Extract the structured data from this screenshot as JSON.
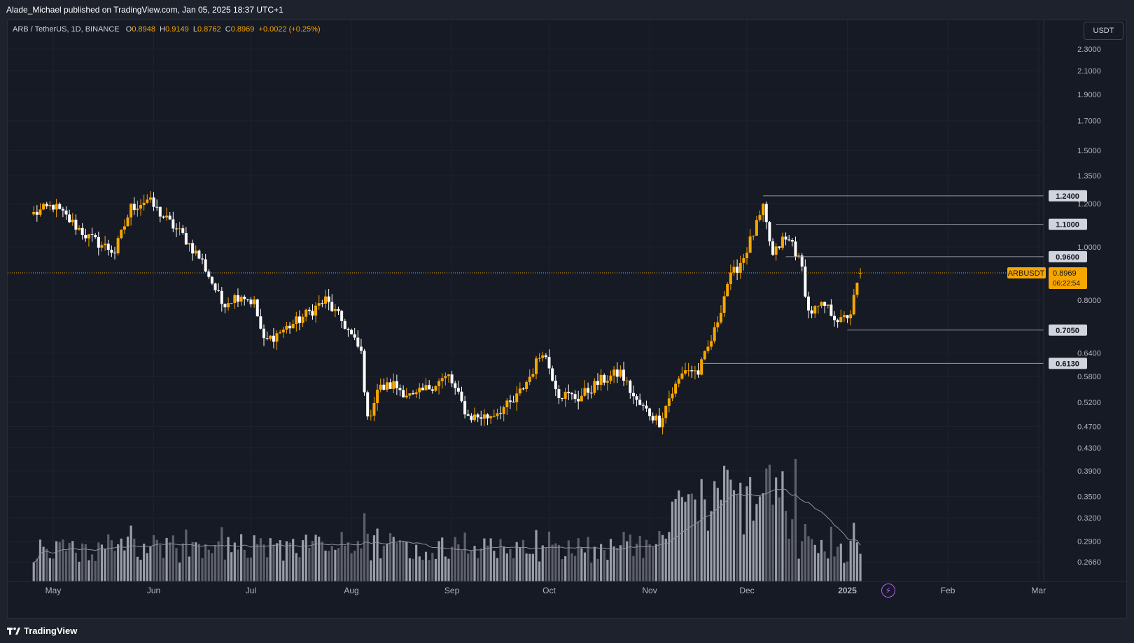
{
  "header": {
    "published_text": "Alade_Michael published on TradingView.com, Jan 05, 2025 18:37 UTC+1"
  },
  "legend": {
    "symbol_text": "ARB / TetherUS, 1D, BINANCE",
    "open_label": "O",
    "open": "0.8948",
    "high_label": "H",
    "high": "0.9149",
    "low_label": "L",
    "low": "0.8762",
    "close_label": "C",
    "close": "0.8969",
    "change": "+0.0022 (+0.25%)"
  },
  "currency_button": "USDT",
  "price_tag": {
    "symbol": "ARBUSDT",
    "price": "0.8969",
    "countdown": "06:22:54",
    "color": "#f7a600"
  },
  "footer": {
    "brand": "TradingView"
  },
  "icons": {
    "bolt": "lightning-icon",
    "logo": "tradingview-logo-icon"
  },
  "colors": {
    "up": "#f7a600",
    "down": "#ffffff",
    "background": "#161a25",
    "grid": "#1f2330"
  },
  "chart_data": {
    "type": "candlestick",
    "symbol": "ARB / TetherUS",
    "interval": "1D",
    "exchange": "BINANCE",
    "scale": "log",
    "ylim": [
      0.24,
      2.45
    ],
    "price_ticks": [
      "2.3000",
      "2.1000",
      "1.9000",
      "1.7000",
      "1.5000",
      "1.3500",
      "1.2000",
      "1.0000",
      "0.8000",
      "0.6400",
      "0.5800",
      "0.5200",
      "0.4700",
      "0.4300",
      "0.3900",
      "0.3500",
      "0.3200",
      "0.2900",
      "0.2660"
    ],
    "x_ticks": [
      "May",
      "Jun",
      "Jul",
      "Aug",
      "Sep",
      "Oct",
      "Nov",
      "Dec",
      "2025",
      "Feb",
      "Mar"
    ],
    "horizontal_levels": [
      {
        "value": 1.24,
        "label": "1.2400"
      },
      {
        "value": 1.1,
        "label": "1.1000"
      },
      {
        "value": 0.96,
        "label": "0.9600"
      },
      {
        "value": 0.705,
        "label": "0.7050"
      },
      {
        "value": 0.613,
        "label": "0.6130"
      }
    ],
    "last_price": 0.8969,
    "trend_anchors": [
      {
        "date": "2024-04-25",
        "price": 1.15
      },
      {
        "date": "2024-05-01",
        "price": 1.19
      },
      {
        "date": "2024-05-12",
        "price": 1.04
      },
      {
        "date": "2024-05-20",
        "price": 0.98
      },
      {
        "date": "2024-05-25",
        "price": 1.18
      },
      {
        "date": "2024-05-30",
        "price": 1.22
      },
      {
        "date": "2024-06-05",
        "price": 1.12
      },
      {
        "date": "2024-06-10",
        "price": 1.05
      },
      {
        "date": "2024-06-16",
        "price": 0.94
      },
      {
        "date": "2024-06-22",
        "price": 0.79
      },
      {
        "date": "2024-06-28",
        "price": 0.82
      },
      {
        "date": "2024-07-02",
        "price": 0.79
      },
      {
        "date": "2024-07-05",
        "price": 0.67
      },
      {
        "date": "2024-07-10",
        "price": 0.7
      },
      {
        "date": "2024-07-15",
        "price": 0.73
      },
      {
        "date": "2024-07-24",
        "price": 0.8
      },
      {
        "date": "2024-07-30",
        "price": 0.72
      },
      {
        "date": "2024-08-04",
        "price": 0.64
      },
      {
        "date": "2024-08-06",
        "price": 0.48
      },
      {
        "date": "2024-08-09",
        "price": 0.55
      },
      {
        "date": "2024-08-14",
        "price": 0.56
      },
      {
        "date": "2024-08-20",
        "price": 0.53
      },
      {
        "date": "2024-08-26",
        "price": 0.56
      },
      {
        "date": "2024-08-31",
        "price": 0.58
      },
      {
        "date": "2024-09-06",
        "price": 0.49
      },
      {
        "date": "2024-09-12",
        "price": 0.49
      },
      {
        "date": "2024-09-20",
        "price": 0.52
      },
      {
        "date": "2024-09-25",
        "price": 0.58
      },
      {
        "date": "2024-09-29",
        "price": 0.65
      },
      {
        "date": "2024-10-04",
        "price": 0.54
      },
      {
        "date": "2024-10-10",
        "price": 0.53
      },
      {
        "date": "2024-10-17",
        "price": 0.57
      },
      {
        "date": "2024-10-23",
        "price": 0.59
      },
      {
        "date": "2024-10-28",
        "price": 0.52
      },
      {
        "date": "2024-11-04",
        "price": 0.48
      },
      {
        "date": "2024-11-07",
        "price": 0.53
      },
      {
        "date": "2024-11-12",
        "price": 0.6
      },
      {
        "date": "2024-11-16",
        "price": 0.59
      },
      {
        "date": "2024-11-21",
        "price": 0.7
      },
      {
        "date": "2024-11-25",
        "price": 0.86
      },
      {
        "date": "2024-11-30",
        "price": 0.96
      },
      {
        "date": "2024-12-06",
        "price": 1.17
      },
      {
        "date": "2024-12-09",
        "price": 0.96
      },
      {
        "date": "2024-12-12",
        "price": 1.03
      },
      {
        "date": "2024-12-15",
        "price": 1.02
      },
      {
        "date": "2024-12-18",
        "price": 0.91
      },
      {
        "date": "2024-12-20",
        "price": 0.76
      },
      {
        "date": "2024-12-25",
        "price": 0.78
      },
      {
        "date": "2024-12-30",
        "price": 0.73
      },
      {
        "date": "2025-01-02",
        "price": 0.76
      },
      {
        "date": "2025-01-05",
        "price": 0.8969
      }
    ]
  }
}
